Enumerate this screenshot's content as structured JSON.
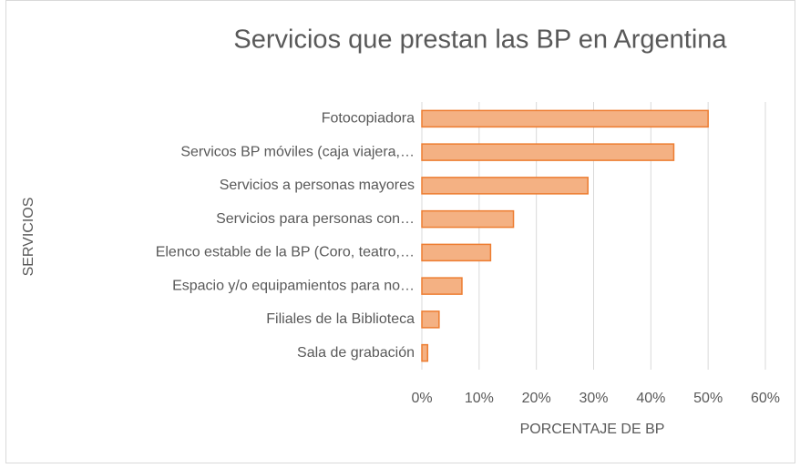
{
  "chart_data": {
    "type": "barh",
    "title": "Servicios que prestan las BP en Argentina",
    "xlabel": "PORCENTAJE DE BP",
    "ylabel": "SERVICIOS",
    "categories": [
      "Fotocopiadora",
      "Servicos BP móviles (caja viajera,…",
      "Servicios a personas mayores",
      "Servicios para personas con…",
      "Elenco estable de la BP (Coro, teatro,…",
      "Espacio y/o equipamientos para no…",
      "Filiales de la Biblioteca",
      "Sala de grabación"
    ],
    "values": [
      50,
      44,
      29,
      16,
      12,
      7,
      3,
      1
    ],
    "color": "#f4b183",
    "edge_color": "#ed7d31",
    "xlim": [
      0,
      60
    ],
    "xticks": [
      {
        "value": 0,
        "label": "0%"
      },
      {
        "value": 10,
        "label": "10%"
      },
      {
        "value": 20,
        "label": "20%"
      },
      {
        "value": 30,
        "label": "30%"
      },
      {
        "value": 40,
        "label": "40%"
      },
      {
        "value": 50,
        "label": "50%"
      },
      {
        "value": 60,
        "label": "60%"
      }
    ],
    "grid": true
  }
}
